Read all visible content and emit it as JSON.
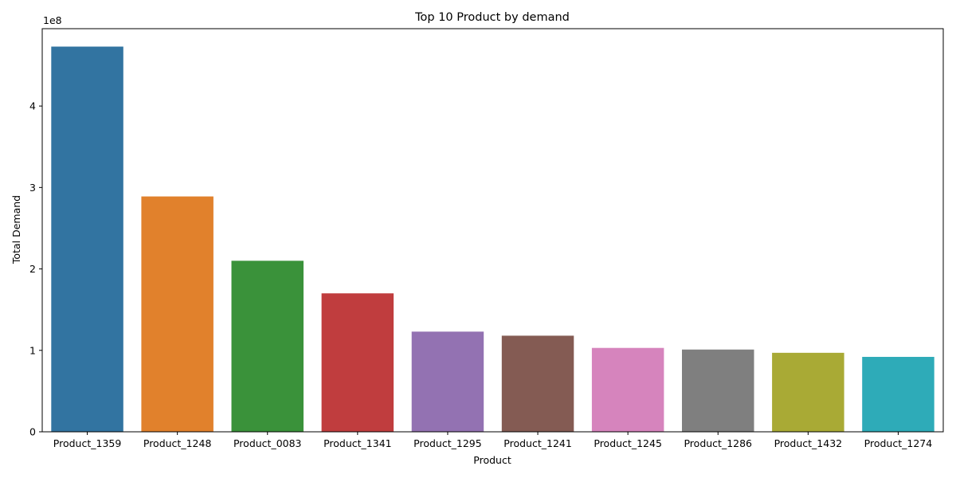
{
  "chart_data": {
    "type": "bar",
    "title": "Top 10 Product by demand",
    "xlabel": "Product",
    "ylabel": "Total Demand",
    "y_offset_label": "1e8",
    "y_scale": 100000000,
    "ylim": [
      0,
      4.95
    ],
    "yticks": [
      0,
      1,
      2,
      3,
      4
    ],
    "ytick_labels": [
      "0",
      "1",
      "2",
      "3",
      "4"
    ],
    "grid": false,
    "legend": false,
    "categories": [
      "Product_1359",
      "Product_1248",
      "Product_0083",
      "Product_1341",
      "Product_1295",
      "Product_1241",
      "Product_1245",
      "Product_1286",
      "Product_1432",
      "Product_1274"
    ],
    "values": [
      4.73,
      2.89,
      2.1,
      1.7,
      1.23,
      1.18,
      1.03,
      1.01,
      0.97,
      0.92
    ],
    "colors": [
      "#3274a1",
      "#e1812c",
      "#3a923a",
      "#c03d3e",
      "#9372b2",
      "#845b53",
      "#d684bd",
      "#7f7f7f",
      "#a9aa35",
      "#2eabb8"
    ]
  }
}
